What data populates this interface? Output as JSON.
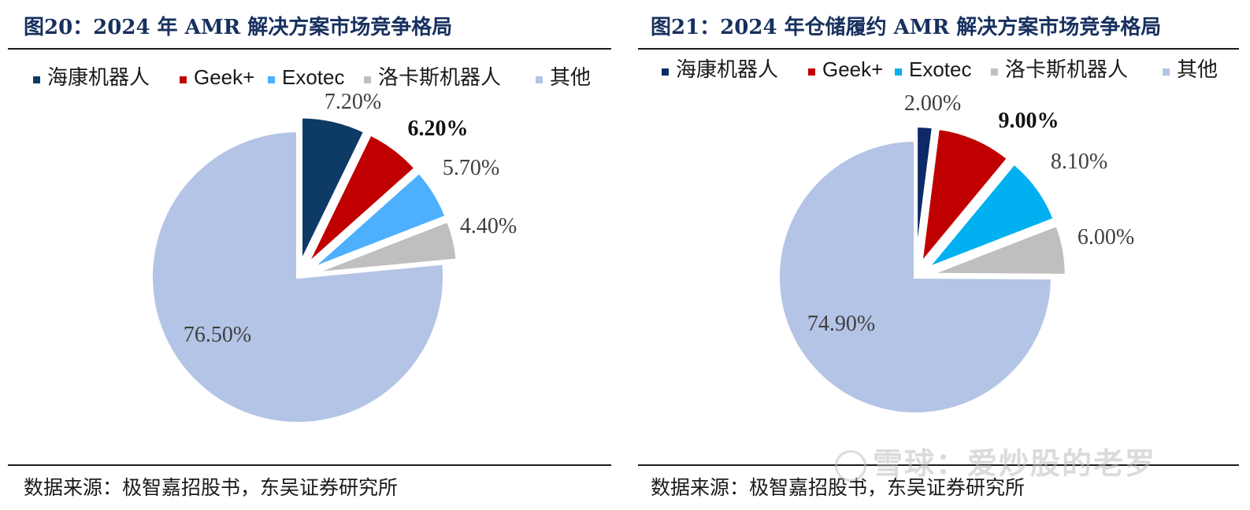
{
  "watermark": "雪球：爱炒股的老罗",
  "chart_data": [
    {
      "type": "pie",
      "figure_title": "图20：2024 年 AMR 解决方案市场竞争格局",
      "source": "数据来源：极智嘉招股书，东吴证券研究所",
      "legend_position": "top",
      "categories": [
        "海康机器人",
        "Geek+",
        "Exotec",
        "洛卡斯机器人",
        "其他"
      ],
      "values": [
        7.2,
        6.2,
        5.7,
        4.4,
        76.5
      ],
      "labels": [
        "7.20%",
        "6.20%",
        "5.70%",
        "4.40%",
        "76.50%"
      ],
      "bold_label_index": 1,
      "colors": [
        "#0e3a66",
        "#c00000",
        "#4db0ff",
        "#bfbfbf",
        "#b4c4e6"
      ]
    },
    {
      "type": "pie",
      "figure_title": "图21：2024 年仓储履约 AMR 解决方案市场竞争格局",
      "source": "数据来源：极智嘉招股书，东吴证券研究所",
      "legend_position": "top",
      "categories": [
        "海康机器人",
        "Geek+",
        "Exotec",
        "洛卡斯机器人",
        "其他"
      ],
      "values": [
        2.0,
        9.0,
        8.1,
        6.0,
        74.9
      ],
      "labels": [
        "2.00%",
        "9.00%",
        "8.10%",
        "6.00%",
        "74.90%"
      ],
      "bold_label_index": 1,
      "colors": [
        "#0e2a66",
        "#c00000",
        "#00b0f0",
        "#bfbfbf",
        "#b4c4e6"
      ]
    }
  ]
}
